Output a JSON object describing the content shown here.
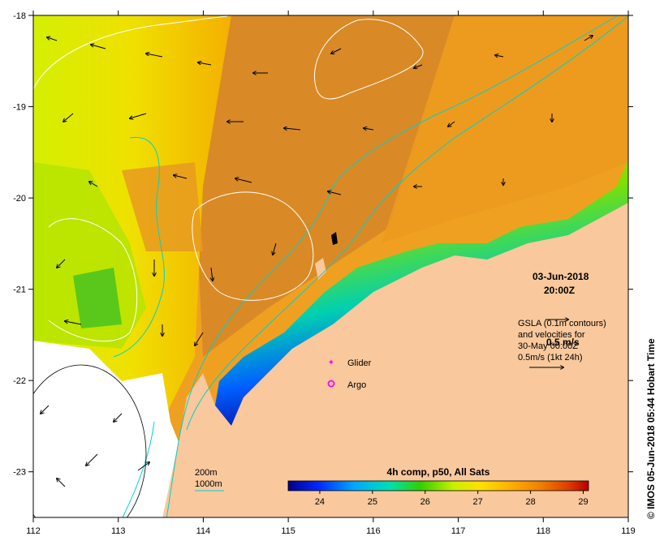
{
  "map": {
    "date": "03-Jun-2018",
    "time": "20:00Z",
    "side_credit": "© IMOS 05-Jun-2018 05:44 Hobart Time",
    "axes": {
      "lon_ticks": [
        "112",
        "113",
        "114",
        "115",
        "116",
        "117",
        "118",
        "119"
      ],
      "lat_ticks": [
        "-18",
        "-19",
        "-20",
        "-21",
        "-22",
        "-23"
      ],
      "lon_range": [
        112,
        119
      ],
      "lat_range": [
        -23.5,
        -18
      ]
    },
    "gsla_note": {
      "line1": "GSLA (0.1m contours)",
      "line2": "and velocities for",
      "line3": "30-May 00:00Z",
      "line4": "0.5m/s (1kt 24h)",
      "overlay": "0.5 m/s"
    },
    "symbols": {
      "glider": "Glider",
      "argo": "Argo"
    },
    "isobaths": {
      "depth_200": "200m",
      "depth_1000": "1000m"
    },
    "colorbar": {
      "title": "4h comp, p50, All Sats",
      "ticks": [
        "24",
        "25",
        "26",
        "27",
        "28",
        "29"
      ],
      "range": [
        23.4,
        29.1
      ]
    },
    "colors": {
      "land": "#f9c89c",
      "isobath": "#00d0d0",
      "contour": "#ffffff",
      "glider": "#ff00ff",
      "argo": "#ff00ff"
    }
  }
}
